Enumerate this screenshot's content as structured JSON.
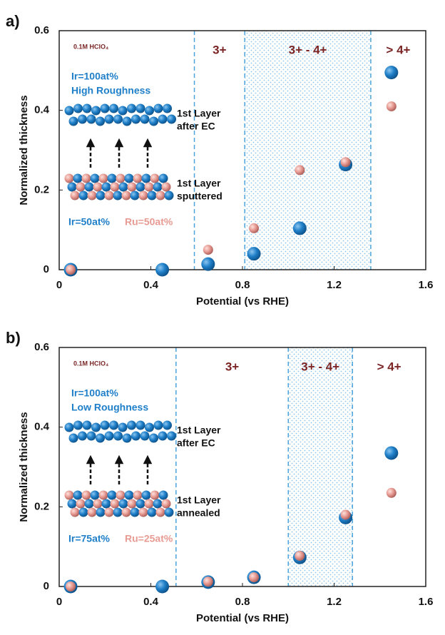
{
  "chart_data": [
    {
      "type": "scatter",
      "panel_label": "a)",
      "xlabel": "Potential (vs RHE)",
      "ylabel": "Normalized thickness",
      "xlim": [
        0,
        1.6
      ],
      "ylim": [
        0,
        0.6
      ],
      "xticks": [
        0,
        0.4,
        0.8,
        1.2,
        1.6
      ],
      "yticks": [
        0,
        0.2,
        0.4,
        0.6
      ],
      "regions": [
        {
          "label": "3+",
          "from": 0.59
        },
        {
          "label": "3+ - 4+",
          "from": 0.81,
          "dotted": true
        },
        {
          "label": "> 4+",
          "from": 1.36
        }
      ],
      "annotations": {
        "electrolyte": "0.1M HClO₄",
        "surface": [
          "Ir=100at%",
          "High Roughness"
        ],
        "top_layer": [
          "1st Layer",
          "after EC"
        ],
        "bottom_layer": [
          "1st Layer",
          "sputtered"
        ]
      },
      "series": [
        {
          "name": "Ir=50at%",
          "color": "#1f7fc8",
          "x": [
            0.05,
            0.45,
            0.65,
            0.85,
            1.05,
            1.25,
            1.45
          ],
          "values": [
            0,
            0,
            0.014,
            0.04,
            0.104,
            0.264,
            0.495
          ]
        },
        {
          "name": "Ru=50at%",
          "color": "#e79b93",
          "x": [
            0.05,
            0.65,
            0.85,
            1.05,
            1.25,
            1.45
          ],
          "values": [
            0,
            0.05,
            0.104,
            0.25,
            0.27,
            0.41
          ]
        }
      ]
    },
    {
      "type": "scatter",
      "panel_label": "b)",
      "xlabel": "Potential (vs RHE)",
      "ylabel": "Normalized thickness",
      "xlim": [
        0,
        1.6
      ],
      "ylim": [
        0,
        0.6
      ],
      "xticks": [
        0,
        0.4,
        0.8,
        1.2,
        1.6
      ],
      "yticks": [
        0,
        0.2,
        0.4,
        0.6
      ],
      "regions": [
        {
          "label": "3+",
          "from": 0.51
        },
        {
          "label": "3+ - 4+",
          "from": 1.0,
          "dotted": true
        },
        {
          "label": "> 4+",
          "from": 1.28
        }
      ],
      "annotations": {
        "electrolyte": "0.1M HClO₄",
        "surface": [
          "Ir=100at%",
          "Low Roughness"
        ],
        "top_layer": [
          "1st Layer",
          "after EC"
        ],
        "bottom_layer": [
          "1st Layer",
          "annealed"
        ]
      },
      "series": [
        {
          "name": "Ir=75at%",
          "color": "#1f7fc8",
          "x": [
            0.05,
            0.45,
            0.65,
            0.85,
            1.05,
            1.25,
            1.45
          ],
          "values": [
            0,
            0,
            0.011,
            0.023,
            0.073,
            0.173,
            0.335
          ]
        },
        {
          "name": "Ru=25at%",
          "color": "#e79b93",
          "x": [
            0.05,
            0.65,
            0.85,
            1.05,
            1.25,
            1.45
          ],
          "values": [
            0,
            0.012,
            0.023,
            0.077,
            0.18,
            0.235
          ]
        }
      ]
    }
  ]
}
